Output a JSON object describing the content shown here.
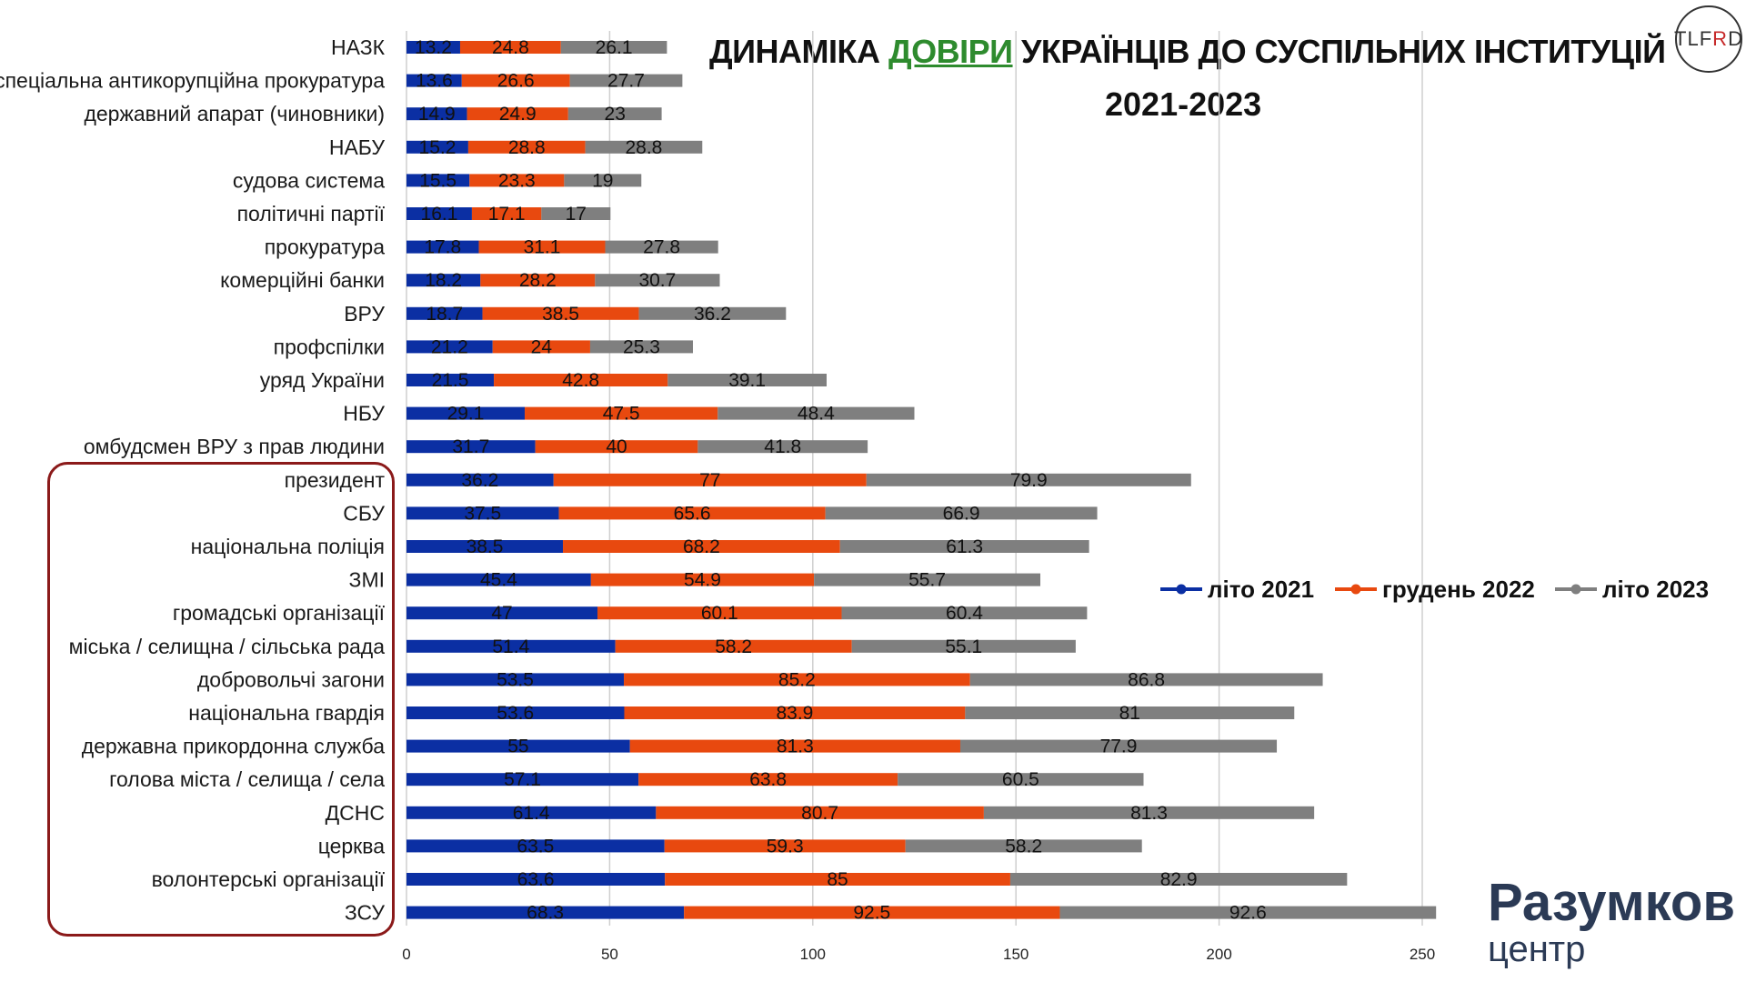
{
  "title": {
    "prefix": "ДИНАМІКА ",
    "accent": "ДОВІРИ",
    "suffix": " УКРАЇНЦІВ ДО СУСПІЛЬНИХ ІНСТИТУЦІЙ",
    "years": "2021-2023"
  },
  "logos": {
    "tlfrd_left": "TLF",
    "tlfrd_accent": "R",
    "tlfrd_right": "D",
    "razumkov_main": "Разумков",
    "razumkov_sub": "центр"
  },
  "colors": {
    "leto_2021": "#0b2fa3",
    "gruden_2022": "#e8490f",
    "leto_2023": "#7f7f7f",
    "title_accent": "#2e8b2e",
    "highlight_border": "#8b1a1a"
  },
  "chart_data": {
    "type": "bar",
    "orientation": "horizontal",
    "stacked": true,
    "xlim": [
      0,
      250
    ],
    "xticks": [
      0,
      50,
      100,
      150,
      200,
      250
    ],
    "grid": "vertical",
    "legend_position": "right",
    "categories": [
      "НАЗК",
      "спеціальна антикорупційна прокуратура",
      "державний апарат (чиновники)",
      "НАБУ",
      "судова система",
      "політичні партії",
      "прокуратура",
      "комерційні банки",
      "ВРУ",
      "профспілки",
      "уряд України",
      "НБУ",
      "омбудсмен ВРУ з прав людини",
      "президент",
      "СБУ",
      "національна поліція",
      "ЗМІ",
      "громадські організації",
      "міська / селищна / сільська рада",
      "добровольчі загони",
      "національна гвардія",
      "державна прикордонна служба",
      "голова міста / селища / села",
      "ДСНС",
      "церква",
      "волонтерські організації",
      "ЗСУ"
    ],
    "series": [
      {
        "name": "літо 2021",
        "color": "#0b2fa3",
        "values": [
          13.2,
          13.6,
          14.9,
          15.2,
          15.5,
          16.1,
          17.8,
          18.2,
          18.7,
          21.2,
          21.5,
          29.1,
          31.7,
          36.2,
          37.5,
          38.5,
          45.4,
          47,
          51.4,
          53.5,
          53.6,
          55,
          57.1,
          61.4,
          63.5,
          63.6,
          68.3
        ]
      },
      {
        "name": "грудень 2022",
        "color": "#e8490f",
        "values": [
          24.8,
          26.6,
          24.9,
          28.8,
          23.3,
          17.1,
          31.1,
          28.2,
          38.5,
          24,
          42.8,
          47.5,
          40,
          77,
          65.6,
          68.2,
          54.9,
          60.1,
          58.2,
          85.2,
          83.9,
          81.3,
          63.8,
          80.7,
          59.3,
          85,
          92.5
        ]
      },
      {
        "name": "літо 2023",
        "color": "#7f7f7f",
        "values": [
          26.1,
          27.7,
          23,
          28.8,
          19,
          17,
          27.8,
          30.7,
          36.2,
          25.3,
          39.1,
          48.4,
          41.8,
          79.9,
          66.9,
          61.3,
          55.7,
          60.4,
          55.1,
          86.8,
          81,
          77.9,
          60.5,
          81.3,
          58.2,
          82.9,
          92.6
        ]
      }
    ],
    "highlighted_categories": [
      "президент",
      "СБУ",
      "національна поліція",
      "ЗМІ",
      "громадські організації",
      "міська / селищна / сільська рада",
      "добровольчі загони",
      "національна гвардія",
      "державна прикордонна служба",
      "голова міста / селища / села",
      "ДСНС",
      "церква",
      "волонтерські організації",
      "ЗСУ"
    ]
  }
}
